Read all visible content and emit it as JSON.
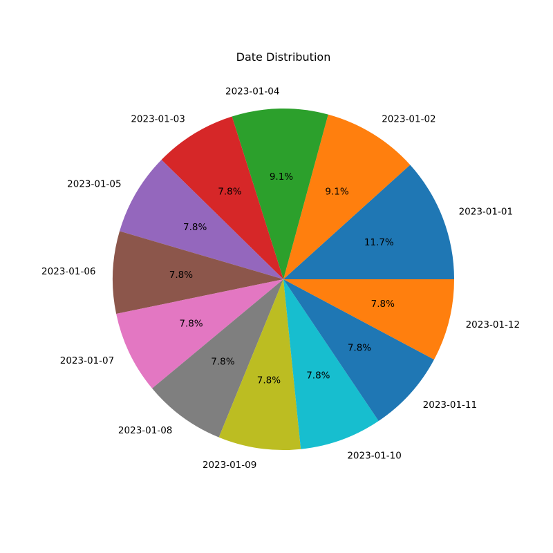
{
  "chart_data": {
    "type": "pie",
    "title": "Date Distribution",
    "start_angle": 0,
    "direction": "counterclockwise",
    "slices": [
      {
        "label": "2023-01-01",
        "percent_label": "11.7%",
        "value": 11.7,
        "color": "#1f77b4"
      },
      {
        "label": "2023-01-02",
        "percent_label": "9.1%",
        "value": 9.1,
        "color": "#ff7f0e"
      },
      {
        "label": "2023-01-04",
        "percent_label": "9.1%",
        "value": 9.1,
        "color": "#2ca02c"
      },
      {
        "label": "2023-01-03",
        "percent_label": "7.8%",
        "value": 7.8,
        "color": "#d62728"
      },
      {
        "label": "2023-01-05",
        "percent_label": "7.8%",
        "value": 7.8,
        "color": "#9467bd"
      },
      {
        "label": "2023-01-06",
        "percent_label": "7.8%",
        "value": 7.8,
        "color": "#8c564b"
      },
      {
        "label": "2023-01-07",
        "percent_label": "7.8%",
        "value": 7.8,
        "color": "#e377c2"
      },
      {
        "label": "2023-01-08",
        "percent_label": "7.8%",
        "value": 7.8,
        "color": "#7f7f7f"
      },
      {
        "label": "2023-01-09",
        "percent_label": "7.8%",
        "value": 7.8,
        "color": "#bcbd22"
      },
      {
        "label": "2023-01-10",
        "percent_label": "7.8%",
        "value": 7.8,
        "color": "#17becf"
      },
      {
        "label": "2023-01-11",
        "percent_label": "7.8%",
        "value": 7.8,
        "color": "#1f77b4"
      },
      {
        "label": "2023-01-12",
        "percent_label": "7.8%",
        "value": 7.8,
        "color": "#ff7f0e"
      }
    ]
  }
}
